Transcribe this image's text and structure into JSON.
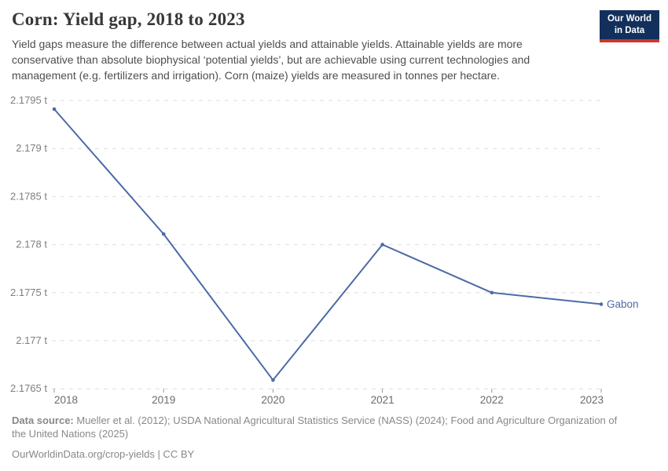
{
  "header": {
    "title": "Corn: Yield gap, 2018 to 2023",
    "subtitle": "Yield gaps measure the difference between actual yields and attainable yields. Attainable yields are more conservative than absolute biophysical ‘potential yields’, but are achievable using current technologies and management (e.g. fertilizers and irrigation). Corn (maize) yields are measured in tonnes per hectare.",
    "logo_line1": "Our World",
    "logo_line2": "in Data"
  },
  "chart_data": {
    "type": "line",
    "title": "Corn: Yield gap, 2018 to 2023",
    "x": [
      2018,
      2019,
      2020,
      2021,
      2022,
      2023
    ],
    "x_tick_labels": [
      "2018",
      "2019",
      "2020",
      "2021",
      "2022",
      "2023"
    ],
    "series": [
      {
        "name": "Gabon",
        "values": [
          2.17941,
          2.17811,
          2.17659,
          2.178,
          2.1775,
          2.17738
        ]
      }
    ],
    "unit": "t",
    "ylabel": "",
    "xlabel": "",
    "ylim": [
      2.1765,
      2.1795
    ],
    "yticks": [
      2.1795,
      2.179,
      2.1785,
      2.178,
      2.1775,
      2.177,
      2.1765
    ],
    "ytick_labels": [
      "2.1795 t",
      "2.179 t",
      "2.1785 t",
      "2.178 t",
      "2.1775 t",
      "2.177 t",
      "2.1765 t"
    ],
    "grid": "horizontal-dashed",
    "legend_position": "end-of-line",
    "end_label": "Gabon"
  },
  "footer": {
    "source_label": "Data source:",
    "source_text": "Mueller et al. (2012); USDA National Agricultural Statistics Service (NASS) (2024); Food and Agriculture Organization of the United Nations (2025)",
    "license_line": "OurWorldinData.org/crop-yields | CC BY"
  },
  "colors": {
    "line": "#4c6ba5",
    "grid": "#dedede",
    "y_axis_text": "#7e7e7e",
    "x_axis_text": "#6b6b6b",
    "tick_mark": "#9a9a9a",
    "logo_bg": "#12305b",
    "logo_red": "#ce352c",
    "footer_text": "#888888"
  }
}
